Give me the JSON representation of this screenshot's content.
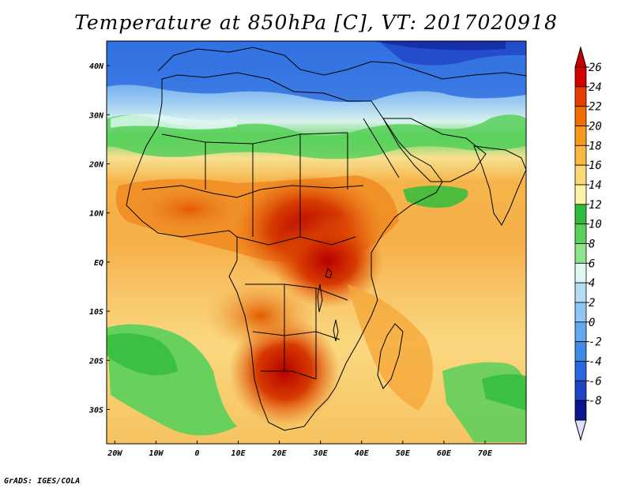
{
  "title": "Temperature at 850hPa [C], VT: 2017020918",
  "footer": "GrADS: IGES/COLA",
  "map": {
    "lon_range": [
      -22,
      80
    ],
    "lat_range": [
      -37,
      45
    ],
    "variable": "Temperature at 850hPa",
    "units": "C",
    "valid_time": "2017020918",
    "x_ticks": [
      "20W",
      "10W",
      "0",
      "10E",
      "20E",
      "30E",
      "40E",
      "50E",
      "60E",
      "70E"
    ],
    "y_ticks": [
      "40N",
      "30N",
      "20N",
      "10N",
      "EQ",
      "10S",
      "20S",
      "30S"
    ]
  },
  "colorbar": {
    "levels": [
      "26",
      "24",
      "22",
      "20",
      "18",
      "16",
      "14",
      "12",
      "10",
      "8",
      "6",
      "4",
      "2",
      "0",
      "-2",
      "-4",
      "-6",
      "-8"
    ],
    "colors": [
      "#d20000",
      "#e83c00",
      "#f06e00",
      "#f59a1e",
      "#f7b940",
      "#fad878",
      "#fff2a8",
      "#2fbc3c",
      "#58d05a",
      "#8ee48a",
      "#dff7f3",
      "#b4dcf5",
      "#8fc6f2",
      "#64a8ee",
      "#3e8ae6",
      "#2a66dc",
      "#1f44c4",
      "#0a148c"
    ],
    "top_arrow_color": "#c80000",
    "bottom_arrow_color": "#e2dcff"
  }
}
